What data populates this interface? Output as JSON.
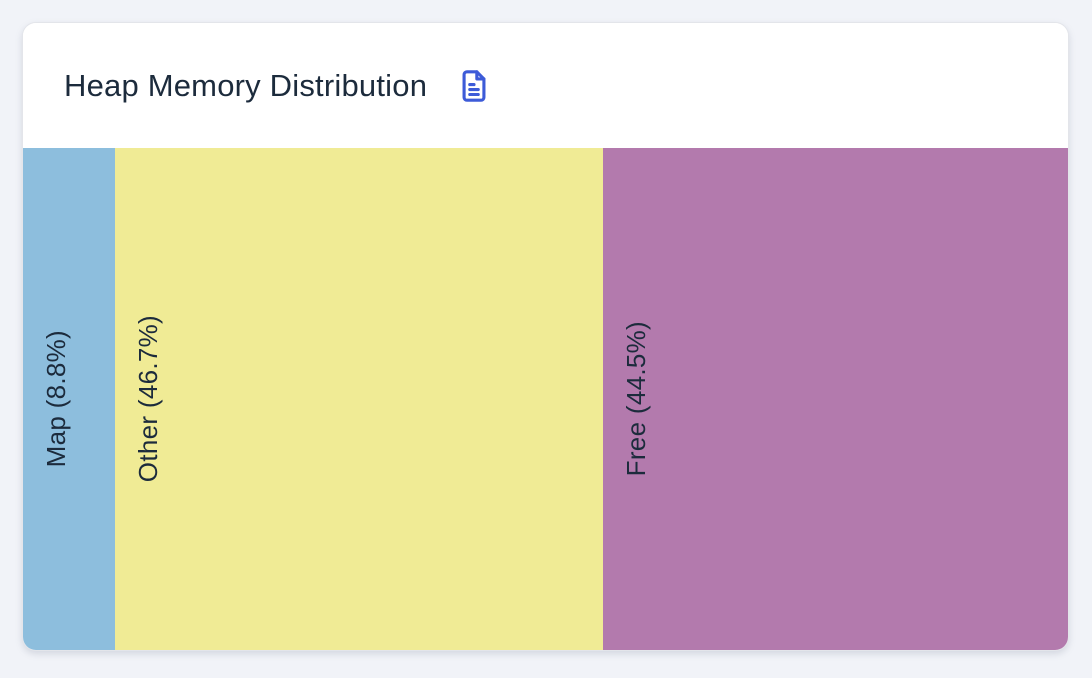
{
  "page": {
    "background_color": "#f1f3f8"
  },
  "card": {
    "title": "Heap Memory Distribution",
    "title_color": "#1c2b3c",
    "icon": "document-icon",
    "icon_color": "#3d5bd8",
    "border_color": "#e3e5ea"
  },
  "chart_data": {
    "type": "treemap",
    "title": "Heap Memory Distribution",
    "orientation": "horizontal-single-row",
    "legend_position": "none",
    "grid": false,
    "label_rotation": -90,
    "label_color": "#1c2b3c",
    "units": "percent",
    "total": 100,
    "segments": [
      {
        "label": "Map",
        "percent": 8.8,
        "display": "Map (8.8%)",
        "color": "#8dbedd"
      },
      {
        "label": "Other",
        "percent": 46.7,
        "display": "Other (46.7%)",
        "color": "#f0eb95"
      },
      {
        "label": "Free",
        "percent": 44.5,
        "display": "Free (44.5%)",
        "color": "#b37aad"
      }
    ]
  }
}
